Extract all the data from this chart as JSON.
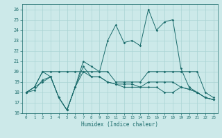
{
  "xlabel": "Humidex (Indice chaleur)",
  "bg_color": "#cce9e9",
  "line_color": "#1a6b6b",
  "grid_color": "#aad4d4",
  "xlim": [
    -0.5,
    23.5
  ],
  "ylim": [
    16,
    26.5
  ],
  "yticks": [
    16,
    17,
    18,
    19,
    20,
    21,
    22,
    23,
    24,
    25,
    26
  ],
  "xticks": [
    0,
    1,
    2,
    3,
    4,
    5,
    6,
    7,
    8,
    9,
    10,
    11,
    12,
    13,
    14,
    15,
    16,
    17,
    18,
    19,
    20,
    21,
    22,
    23
  ],
  "line1_y": [
    18,
    18.5,
    20,
    19.5,
    17.5,
    16.3,
    18.5,
    21.0,
    20.5,
    20.0,
    23.0,
    24.5,
    22.8,
    23.0,
    22.5,
    26.0,
    24.0,
    24.8,
    25.0,
    20.3,
    18.5,
    18.0,
    17.5,
    17.3
  ],
  "line2_y": [
    18,
    18.5,
    20,
    20,
    20,
    20,
    20,
    20,
    20,
    20,
    20,
    19.0,
    19.0,
    19.0,
    19.0,
    20.0,
    20.0,
    20.0,
    20.0,
    20.0,
    20.0,
    20.0,
    18.0,
    17.5
  ],
  "line3_y": [
    18,
    18.5,
    19.0,
    19.5,
    17.5,
    16.3,
    18.5,
    20.5,
    19.5,
    19.5,
    19.0,
    18.8,
    18.5,
    18.5,
    18.5,
    18.5,
    18.5,
    18.0,
    18.0,
    18.5,
    18.3,
    18.0,
    17.5,
    17.3
  ],
  "line4_y": [
    18,
    18.2,
    19.2,
    19.5,
    17.5,
    16.3,
    18.5,
    20.0,
    19.5,
    19.5,
    19.0,
    18.8,
    18.8,
    18.8,
    18.5,
    19.0,
    19.0,
    19.0,
    19.0,
    18.5,
    18.3,
    18.0,
    17.5,
    17.3
  ]
}
